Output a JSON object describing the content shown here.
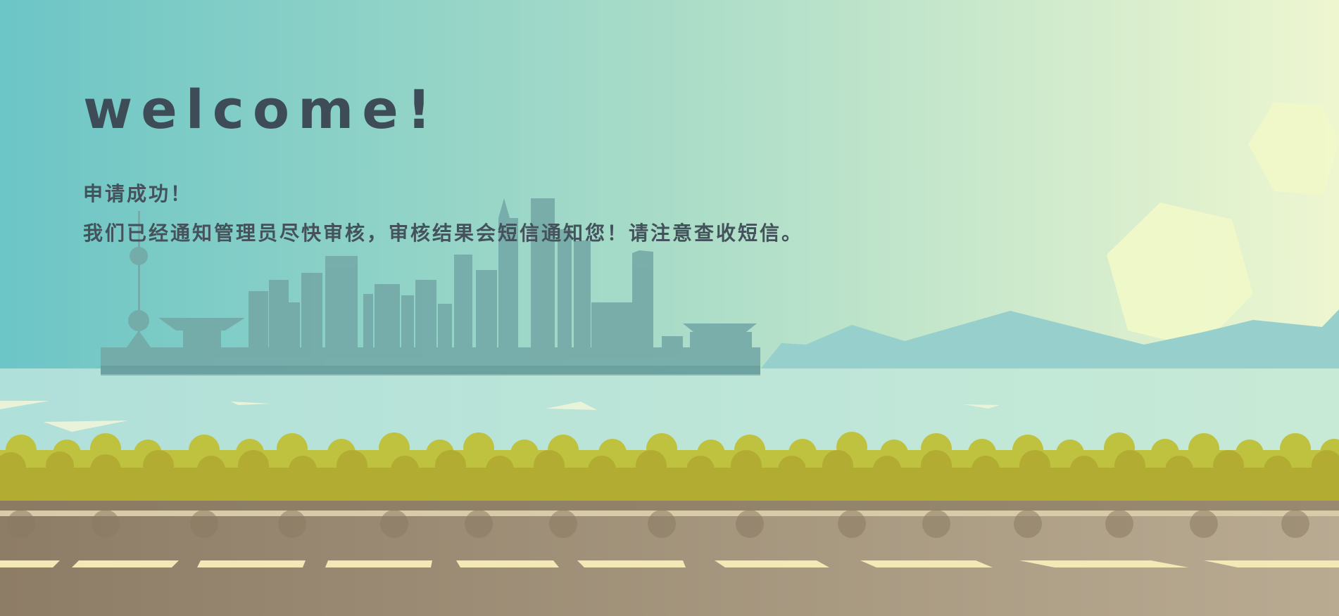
{
  "welcome": {
    "title": "welcome!",
    "line1": "申请成功！",
    "line2": "我们已经通知管理员尽快审核，审核结果会短信通知您！请注意查收短信。"
  },
  "colors": {
    "sky_left": "#6cc5c6",
    "sky_mid": "#a9dcc8",
    "sky_right": "#eef6d0",
    "mountain": "#96cfcb",
    "hexagon": "#f1f8c9",
    "water": "#b0e0da",
    "city": "#74a9a7",
    "bush_light": "#bfc23f",
    "bush_dark": "#b2ac33",
    "road": "#9e8a74",
    "road_line": "#f3e9b6",
    "text": "#3d4c57"
  }
}
